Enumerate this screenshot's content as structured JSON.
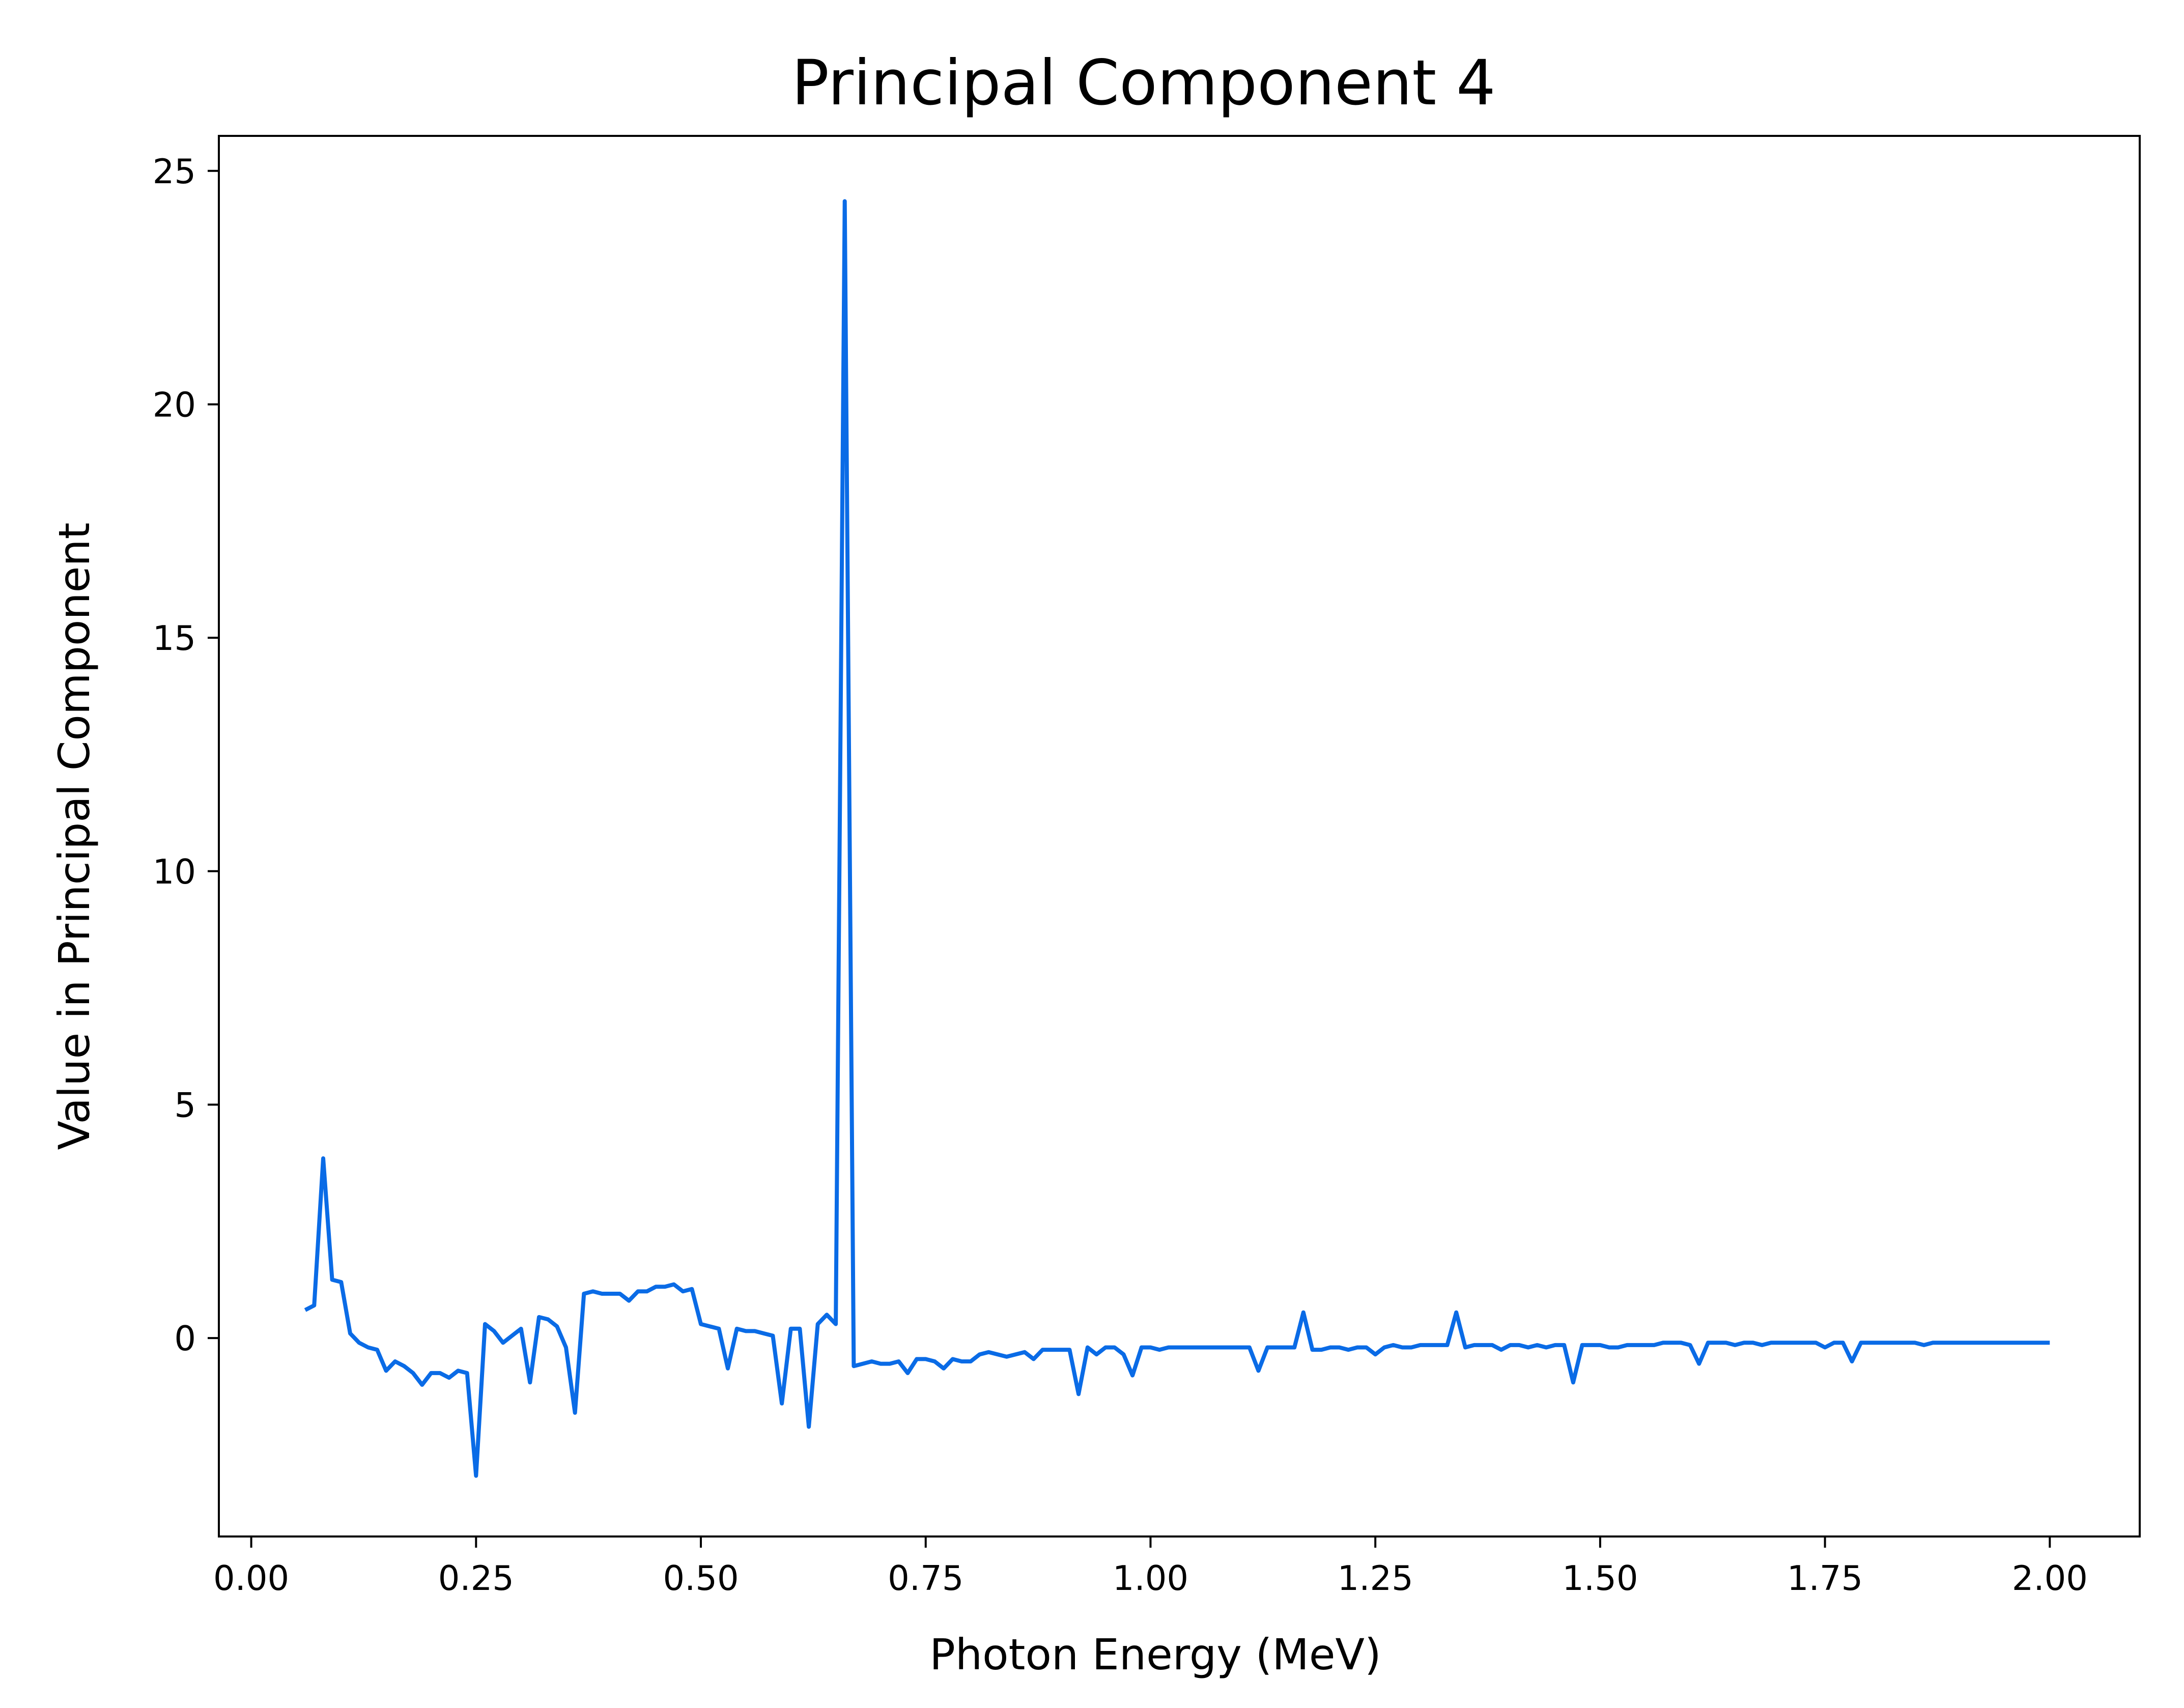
{
  "chart_data": {
    "type": "line",
    "title": "Principal Component 4",
    "xlabel": "Photon Energy (MeV)",
    "ylabel": "Value in Principal Component",
    "xlim": [
      -0.036,
      2.1
    ],
    "ylim": [
      -4.25,
      25.75
    ],
    "xticks": [
      0.0,
      0.25,
      0.5,
      0.75,
      1.0,
      1.25,
      1.5,
      1.75,
      2.0
    ],
    "xtick_labels": [
      "0.00",
      "0.25",
      "0.50",
      "0.75",
      "1.00",
      "1.25",
      "1.50",
      "1.75",
      "2.00"
    ],
    "yticks": [
      0,
      5,
      10,
      15,
      20,
      25
    ],
    "ytick_labels": [
      "0",
      "5",
      "10",
      "15",
      "20",
      "25"
    ],
    "grid": false,
    "line_color": "#0a6be6",
    "series": [
      {
        "x": [
          0.06,
          0.07,
          0.08,
          0.09,
          0.1,
          0.11,
          0.12,
          0.13,
          0.14,
          0.15,
          0.16,
          0.17,
          0.18,
          0.19,
          0.2,
          0.21,
          0.22,
          0.23,
          0.24,
          0.25,
          0.26,
          0.27,
          0.28,
          0.29,
          0.3,
          0.31,
          0.32,
          0.33,
          0.34,
          0.35,
          0.36,
          0.37,
          0.38,
          0.39,
          0.4,
          0.41,
          0.42,
          0.43,
          0.44,
          0.45,
          0.46,
          0.47,
          0.48,
          0.49,
          0.5,
          0.51,
          0.52,
          0.53,
          0.54,
          0.55,
          0.56,
          0.57,
          0.58,
          0.59,
          0.6,
          0.61,
          0.62,
          0.63,
          0.64,
          0.65,
          0.66,
          0.67,
          0.68,
          0.69,
          0.7,
          0.71,
          0.72,
          0.73,
          0.74,
          0.75,
          0.76,
          0.77,
          0.78,
          0.79,
          0.8,
          0.81,
          0.82,
          0.83,
          0.84,
          0.85,
          0.86,
          0.87,
          0.88,
          0.89,
          0.9,
          0.91,
          0.92,
          0.93,
          0.94,
          0.95,
          0.96,
          0.97,
          0.98,
          0.99,
          1.0,
          1.01,
          1.02,
          1.03,
          1.04,
          1.05,
          1.06,
          1.07,
          1.08,
          1.09,
          1.1,
          1.11,
          1.12,
          1.13,
          1.14,
          1.15,
          1.16,
          1.17,
          1.18,
          1.19,
          1.2,
          1.21,
          1.22,
          1.23,
          1.24,
          1.25,
          1.26,
          1.27,
          1.28,
          1.29,
          1.3,
          1.31,
          1.32,
          1.33,
          1.34,
          1.35,
          1.36,
          1.37,
          1.38,
          1.39,
          1.4,
          1.41,
          1.42,
          1.43,
          1.44,
          1.45,
          1.46,
          1.47,
          1.48,
          1.49,
          1.5,
          1.51,
          1.52,
          1.53,
          1.54,
          1.55,
          1.56,
          1.57,
          1.58,
          1.59,
          1.6,
          1.61,
          1.62,
          1.63,
          1.64,
          1.65,
          1.66,
          1.67,
          1.68,
          1.69,
          1.7,
          1.71,
          1.72,
          1.73,
          1.74,
          1.75,
          1.76,
          1.77,
          1.78,
          1.79,
          1.8,
          1.81,
          1.82,
          1.83,
          1.84,
          1.85,
          1.86,
          1.87,
          1.88,
          1.89,
          1.9,
          1.91,
          1.92,
          1.93,
          1.94,
          1.95,
          1.96,
          1.97,
          1.98,
          1.99,
          2.0
        ],
        "y": [
          0.6,
          0.7,
          3.85,
          1.25,
          1.2,
          0.1,
          -0.1,
          -0.2,
          -0.25,
          -0.7,
          -0.5,
          -0.6,
          -0.75,
          -1.0,
          -0.75,
          -0.75,
          -0.85,
          -0.7,
          -0.75,
          -2.95,
          0.3,
          0.15,
          -0.1,
          0.05,
          0.2,
          -0.95,
          0.45,
          0.4,
          0.25,
          -0.2,
          -1.6,
          0.95,
          1.0,
          0.95,
          0.95,
          0.95,
          0.8,
          1.0,
          1.0,
          1.1,
          1.1,
          1.15,
          1.0,
          1.05,
          0.3,
          0.25,
          0.2,
          -0.65,
          0.2,
          0.15,
          0.15,
          0.1,
          0.05,
          -1.4,
          0.2,
          0.2,
          -1.9,
          0.3,
          0.5,
          0.3,
          24.35,
          -0.6,
          -0.55,
          -0.5,
          -0.55,
          -0.55,
          -0.5,
          -0.75,
          -0.45,
          -0.45,
          -0.5,
          -0.65,
          -0.45,
          -0.5,
          -0.5,
          -0.35,
          -0.3,
          -0.35,
          -0.4,
          -0.35,
          -0.3,
          -0.45,
          -0.25,
          -0.25,
          -0.25,
          -0.25,
          -1.2,
          -0.2,
          -0.35,
          -0.2,
          -0.2,
          -0.35,
          -0.8,
          -0.2,
          -0.2,
          -0.25,
          -0.2,
          -0.2,
          -0.2,
          -0.2,
          -0.2,
          -0.2,
          -0.2,
          -0.2,
          -0.2,
          -0.2,
          -0.7,
          -0.2,
          -0.2,
          -0.2,
          -0.2,
          0.55,
          -0.25,
          -0.25,
          -0.2,
          -0.2,
          -0.25,
          -0.2,
          -0.2,
          -0.35,
          -0.2,
          -0.15,
          -0.2,
          -0.2,
          -0.15,
          -0.15,
          -0.15,
          -0.15,
          0.55,
          -0.2,
          -0.15,
          -0.15,
          -0.15,
          -0.25,
          -0.15,
          -0.15,
          -0.2,
          -0.15,
          -0.2,
          -0.15,
          -0.15,
          -0.95,
          -0.15,
          -0.15,
          -0.15,
          -0.2,
          -0.2,
          -0.15,
          -0.15,
          -0.15,
          -0.15,
          -0.1,
          -0.1,
          -0.1,
          -0.15,
          -0.55,
          -0.1,
          -0.1,
          -0.1,
          -0.15,
          -0.1,
          -0.1,
          -0.15,
          -0.1,
          -0.1,
          -0.1,
          -0.1,
          -0.1,
          -0.1,
          -0.2,
          -0.1,
          -0.1,
          -0.5,
          -0.1,
          -0.1,
          -0.1,
          -0.1,
          -0.1,
          -0.1,
          -0.1,
          -0.15,
          -0.1,
          -0.1,
          -0.1,
          -0.1,
          -0.1,
          -0.1,
          -0.1,
          -0.1,
          -0.1,
          -0.1,
          -0.1,
          -0.1,
          -0.1,
          -0.1
        ]
      }
    ]
  }
}
